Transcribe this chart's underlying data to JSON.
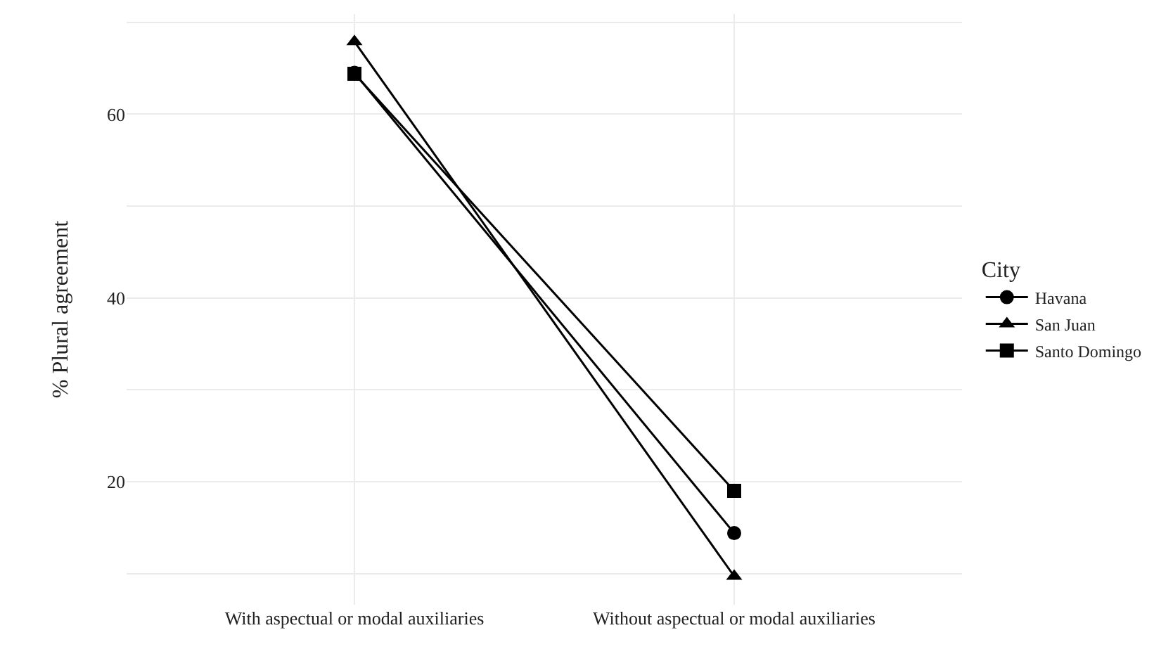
{
  "chart_data": {
    "type": "line",
    "ylabel": "% Plural agreement",
    "legend_title": "City",
    "categories": [
      "With aspectual or modal auxiliaries",
      "Without aspectual or modal auxiliaries"
    ],
    "series": [
      {
        "name": "Havana",
        "color": "#000000",
        "marker": "circle",
        "values": [
          64.5,
          14.4
        ]
      },
      {
        "name": "San Juan",
        "color": "#000000",
        "marker": "triangle",
        "values": [
          67.9,
          9.7
        ]
      },
      {
        "name": "Santo Domingo",
        "color": "#000000",
        "marker": "square",
        "values": [
          64.4,
          19.0
        ]
      }
    ],
    "ylim": [
      6.6,
      70.9
    ],
    "yticks": [
      {
        "value": 10,
        "label": null
      },
      20,
      {
        "value": 30,
        "label": null
      },
      40,
      {
        "value": 50,
        "label": null
      },
      60,
      {
        "value": 70,
        "label": null
      }
    ],
    "grid": true,
    "legend": "right",
    "line_style": "solid"
  }
}
